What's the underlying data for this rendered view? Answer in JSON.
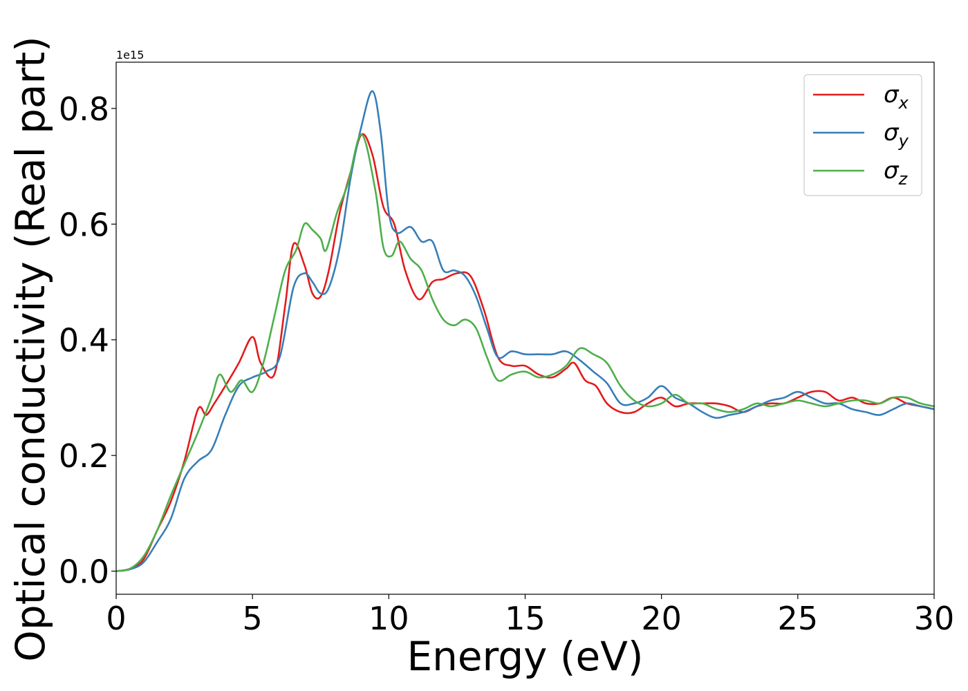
{
  "chart_data": {
    "type": "line",
    "xlabel": "Energy (eV)",
    "ylabel": "Optical conductivity (Real part)",
    "y_offset_label": "1e15",
    "xlim": [
      0,
      30
    ],
    "ylim": [
      -0.04,
      0.88
    ],
    "xticks": [
      0,
      5,
      10,
      15,
      20,
      25,
      30
    ],
    "xtick_labels": [
      "0",
      "5",
      "10",
      "15",
      "20",
      "25",
      "30"
    ],
    "yticks": [
      0.0,
      0.2,
      0.4,
      0.6,
      0.8
    ],
    "ytick_labels": [
      "0.0",
      "0.2",
      "0.4",
      "0.6",
      "0.8"
    ],
    "grid": false,
    "legend_position": "top-right",
    "series": [
      {
        "name": "σx",
        "symbol": "σ",
        "subscript": "x",
        "color": "#e41a1c",
        "x": [
          0,
          0.5,
          1.0,
          1.5,
          2.0,
          2.5,
          3.0,
          3.3,
          3.6,
          4.0,
          4.5,
          5.0,
          5.3,
          5.8,
          6.2,
          6.5,
          6.9,
          7.2,
          7.5,
          7.8,
          8.2,
          8.6,
          9.0,
          9.4,
          9.8,
          10.2,
          10.6,
          11.1,
          11.6,
          12.0,
          12.5,
          13.0,
          13.5,
          14.0,
          14.5,
          15.0,
          15.5,
          16.0,
          16.5,
          16.8,
          17.2,
          17.6,
          18.0,
          18.5,
          19.0,
          19.5,
          20.0,
          20.5,
          21.0,
          21.5,
          22.0,
          22.5,
          23.0,
          23.5,
          24.0,
          24.5,
          25.0,
          25.5,
          26.0,
          26.5,
          27.0,
          27.5,
          28.0,
          28.5,
          29.0,
          29.5,
          30.0
        ],
        "y": [
          0.0,
          0.004,
          0.02,
          0.07,
          0.12,
          0.19,
          0.28,
          0.27,
          0.29,
          0.32,
          0.36,
          0.405,
          0.36,
          0.34,
          0.46,
          0.565,
          0.53,
          0.48,
          0.475,
          0.52,
          0.62,
          0.69,
          0.755,
          0.72,
          0.63,
          0.6,
          0.52,
          0.47,
          0.5,
          0.505,
          0.515,
          0.51,
          0.45,
          0.37,
          0.355,
          0.355,
          0.34,
          0.335,
          0.35,
          0.36,
          0.33,
          0.32,
          0.29,
          0.275,
          0.275,
          0.29,
          0.3,
          0.285,
          0.29,
          0.29,
          0.29,
          0.285,
          0.275,
          0.285,
          0.29,
          0.29,
          0.3,
          0.31,
          0.31,
          0.295,
          0.3,
          0.29,
          0.29,
          0.3,
          0.29,
          0.285,
          0.28
        ]
      },
      {
        "name": "σy",
        "symbol": "σ",
        "subscript": "y",
        "color": "#377eb8",
        "x": [
          0,
          0.5,
          1.0,
          1.5,
          2.0,
          2.5,
          3.0,
          3.5,
          4.0,
          4.5,
          5.0,
          5.5,
          6.0,
          6.5,
          6.9,
          7.2,
          7.5,
          7.8,
          8.2,
          8.6,
          9.0,
          9.4,
          9.7,
          10.0,
          10.3,
          10.8,
          11.2,
          11.6,
          12.0,
          12.4,
          12.8,
          13.2,
          13.6,
          14.0,
          14.5,
          15.0,
          15.5,
          16.0,
          16.5,
          17.0,
          17.5,
          18.0,
          18.5,
          19.0,
          19.5,
          20.0,
          20.5,
          21.0,
          21.5,
          22.0,
          22.5,
          23.0,
          23.5,
          24.0,
          24.5,
          25.0,
          25.5,
          26.0,
          26.5,
          27.0,
          27.5,
          28.0,
          28.5,
          29.0,
          29.5,
          30.0
        ],
        "y": [
          0.0,
          0.003,
          0.015,
          0.05,
          0.09,
          0.16,
          0.19,
          0.21,
          0.27,
          0.32,
          0.335,
          0.345,
          0.37,
          0.49,
          0.515,
          0.5,
          0.48,
          0.49,
          0.56,
          0.68,
          0.77,
          0.83,
          0.76,
          0.62,
          0.585,
          0.595,
          0.57,
          0.57,
          0.52,
          0.52,
          0.51,
          0.475,
          0.42,
          0.37,
          0.38,
          0.375,
          0.375,
          0.375,
          0.38,
          0.365,
          0.345,
          0.325,
          0.29,
          0.29,
          0.3,
          0.32,
          0.3,
          0.29,
          0.275,
          0.265,
          0.27,
          0.275,
          0.285,
          0.295,
          0.3,
          0.31,
          0.3,
          0.29,
          0.29,
          0.28,
          0.275,
          0.27,
          0.28,
          0.29,
          0.285,
          0.28
        ]
      },
      {
        "name": "σz",
        "symbol": "σ",
        "subscript": "z",
        "color": "#4daf4a",
        "x": [
          0,
          0.5,
          1.0,
          1.5,
          2.0,
          2.5,
          3.0,
          3.5,
          3.8,
          4.2,
          4.6,
          5.0,
          5.4,
          5.8,
          6.2,
          6.6,
          6.9,
          7.2,
          7.5,
          7.7,
          8.1,
          8.5,
          9.0,
          9.5,
          9.8,
          10.1,
          10.4,
          10.8,
          11.2,
          11.6,
          12.0,
          12.4,
          12.8,
          13.2,
          13.6,
          14.0,
          14.5,
          15.0,
          15.5,
          16.0,
          16.5,
          17.0,
          17.5,
          18.0,
          18.5,
          19.0,
          19.5,
          20.0,
          20.5,
          21.0,
          21.5,
          22.0,
          22.5,
          23.0,
          23.5,
          24.0,
          24.5,
          25.0,
          25.5,
          26.0,
          26.5,
          27.0,
          27.5,
          28.0,
          28.5,
          29.0,
          29.5,
          30.0
        ],
        "y": [
          0.0,
          0.004,
          0.025,
          0.07,
          0.13,
          0.185,
          0.24,
          0.3,
          0.34,
          0.31,
          0.33,
          0.31,
          0.36,
          0.44,
          0.52,
          0.555,
          0.6,
          0.59,
          0.575,
          0.555,
          0.62,
          0.67,
          0.755,
          0.66,
          0.56,
          0.545,
          0.57,
          0.54,
          0.52,
          0.47,
          0.435,
          0.425,
          0.435,
          0.42,
          0.37,
          0.33,
          0.34,
          0.345,
          0.335,
          0.34,
          0.355,
          0.385,
          0.375,
          0.36,
          0.32,
          0.295,
          0.285,
          0.29,
          0.305,
          0.29,
          0.29,
          0.28,
          0.275,
          0.28,
          0.29,
          0.285,
          0.29,
          0.295,
          0.29,
          0.285,
          0.29,
          0.295,
          0.295,
          0.29,
          0.3,
          0.3,
          0.29,
          0.285
        ]
      }
    ]
  }
}
